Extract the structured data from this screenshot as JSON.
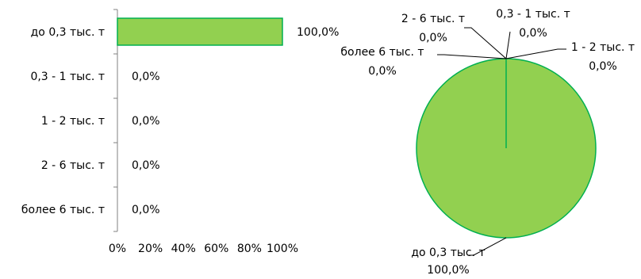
{
  "chart_data": [
    {
      "type": "bar",
      "orientation": "horizontal",
      "categories": [
        "до 0,3 тыс. т",
        "0,3 - 1 тыс. т",
        "1 - 2 тыс. т",
        "2 - 6 тыс. т",
        "более 6 тыс. т"
      ],
      "values": [
        100,
        0,
        0,
        0,
        0
      ],
      "value_labels": [
        "100,0%",
        "0,0%",
        "0,0%",
        "0,0%",
        "0,0%"
      ],
      "xlim": [
        0,
        100
      ],
      "xticks": [
        "0%",
        "20%",
        "40%",
        "60%",
        "80%",
        "100%"
      ],
      "grid": false,
      "legend": "none",
      "bar_color": "#92d050",
      "bar_border_color": "#00b050"
    },
    {
      "type": "pie",
      "categories": [
        "до 0,3 тыс. т",
        "0,3 - 1 тыс. т",
        "1 - 2 тыс. т",
        "2 - 6 тыс. т",
        "более 6 тыс. т"
      ],
      "values": [
        100,
        0,
        0,
        0,
        0
      ],
      "value_labels": [
        "100,0%",
        "0,0%",
        "0,0%",
        "0,0%",
        "0,0%"
      ],
      "legend": "none",
      "slice_color": "#92d050",
      "slice_border_color": "#00b050"
    }
  ]
}
